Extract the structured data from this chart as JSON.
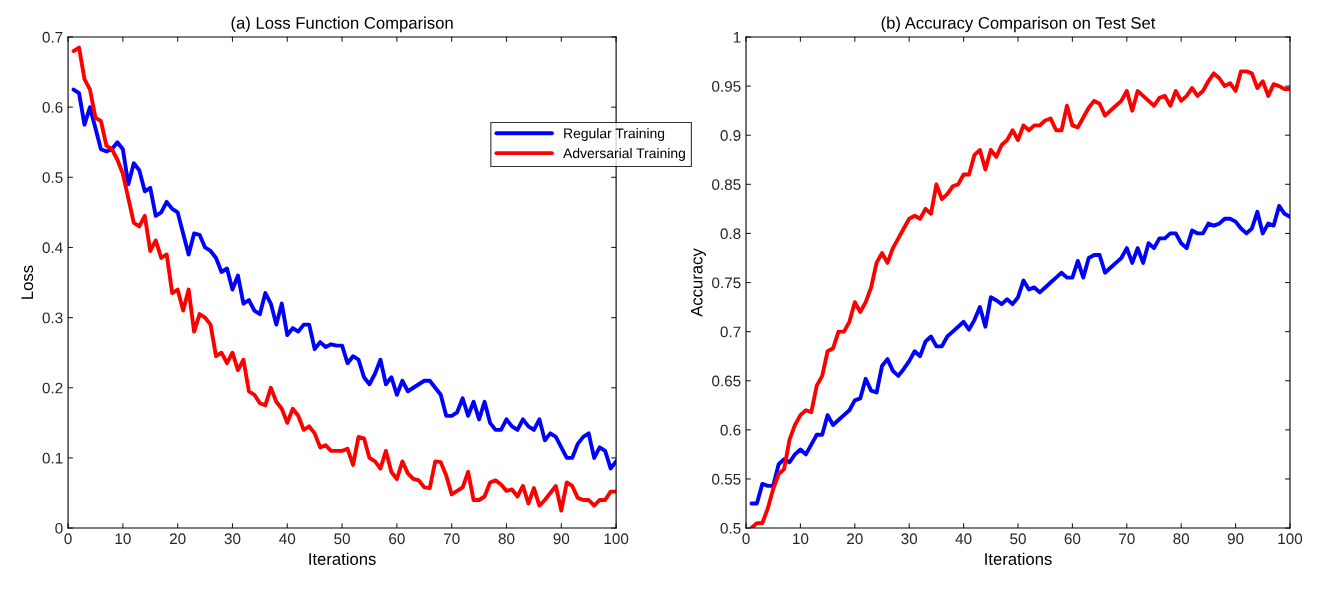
{
  "chart_data": [
    {
      "type": "line",
      "title": "(a) Loss Function Comparison",
      "xlabel": "Iterations",
      "ylabel": "Loss",
      "x": [
        1,
        2,
        3,
        4,
        5,
        6,
        7,
        8,
        9,
        10,
        11,
        12,
        13,
        14,
        15,
        16,
        17,
        18,
        19,
        20,
        21,
        22,
        23,
        24,
        25,
        26,
        27,
        28,
        29,
        30,
        31,
        32,
        33,
        34,
        35,
        36,
        37,
        38,
        39,
        40,
        41,
        42,
        43,
        44,
        45,
        46,
        47,
        48,
        49,
        50,
        51,
        52,
        53,
        54,
        55,
        56,
        57,
        58,
        59,
        60,
        61,
        62,
        63,
        64,
        65,
        66,
        67,
        68,
        69,
        70,
        71,
        72,
        73,
        74,
        75,
        76,
        77,
        78,
        79,
        80,
        81,
        82,
        83,
        84,
        85,
        86,
        87,
        88,
        89,
        90,
        91,
        92,
        93,
        94,
        95,
        96,
        97,
        98,
        99,
        100
      ],
      "series": [
        {
          "name": "Regular Training",
          "color": "#0000ff",
          "values": [
            0.625,
            0.62,
            0.575,
            0.6,
            0.57,
            0.54,
            0.537,
            0.54,
            0.55,
            0.54,
            0.49,
            0.52,
            0.51,
            0.48,
            0.485,
            0.445,
            0.45,
            0.465,
            0.455,
            0.45,
            0.42,
            0.39,
            0.42,
            0.418,
            0.4,
            0.395,
            0.385,
            0.365,
            0.37,
            0.34,
            0.36,
            0.32,
            0.325,
            0.31,
            0.305,
            0.335,
            0.32,
            0.29,
            0.32,
            0.275,
            0.285,
            0.28,
            0.29,
            0.29,
            0.255,
            0.265,
            0.258,
            0.262,
            0.26,
            0.26,
            0.235,
            0.245,
            0.24,
            0.215,
            0.205,
            0.22,
            0.24,
            0.205,
            0.215,
            0.19,
            0.21,
            0.195,
            0.2,
            0.205,
            0.21,
            0.21,
            0.2,
            0.19,
            0.16,
            0.16,
            0.165,
            0.185,
            0.16,
            0.18,
            0.155,
            0.18,
            0.15,
            0.14,
            0.14,
            0.155,
            0.145,
            0.14,
            0.155,
            0.145,
            0.14,
            0.155,
            0.125,
            0.135,
            0.13,
            0.115,
            0.1,
            0.1,
            0.12,
            0.13,
            0.135,
            0.1,
            0.115,
            0.11,
            0.085,
            0.095
          ]
        },
        {
          "name": "Adversarial Training",
          "color": "#ff0000",
          "values": [
            0.68,
            0.685,
            0.64,
            0.625,
            0.585,
            0.58,
            0.545,
            0.54,
            0.525,
            0.505,
            0.47,
            0.435,
            0.43,
            0.445,
            0.395,
            0.41,
            0.385,
            0.39,
            0.335,
            0.34,
            0.31,
            0.34,
            0.28,
            0.305,
            0.3,
            0.29,
            0.245,
            0.25,
            0.235,
            0.25,
            0.225,
            0.24,
            0.195,
            0.19,
            0.178,
            0.175,
            0.2,
            0.18,
            0.17,
            0.15,
            0.17,
            0.16,
            0.14,
            0.145,
            0.135,
            0.115,
            0.118,
            0.11,
            0.11,
            0.11,
            0.113,
            0.09,
            0.13,
            0.128,
            0.1,
            0.095,
            0.085,
            0.11,
            0.08,
            0.07,
            0.095,
            0.078,
            0.07,
            0.068,
            0.058,
            0.057,
            0.095,
            0.094,
            0.075,
            0.048,
            0.053,
            0.058,
            0.08,
            0.04,
            0.04,
            0.045,
            0.065,
            0.068,
            0.062,
            0.053,
            0.055,
            0.045,
            0.06,
            0.035,
            0.057,
            0.032,
            0.04,
            0.05,
            0.06,
            0.025,
            0.065,
            0.06,
            0.043,
            0.04,
            0.04,
            0.032,
            0.04,
            0.04,
            0.052,
            0.052
          ]
        }
      ],
      "xlim": [
        0,
        100
      ],
      "xticks": [
        0,
        10,
        20,
        30,
        40,
        50,
        60,
        70,
        80,
        90,
        100
      ],
      "ylim": [
        0,
        0.7
      ],
      "yticks": [
        0,
        0.1,
        0.2,
        0.3,
        0.4,
        0.5,
        0.6,
        0.7
      ],
      "grid": false,
      "legend": "top right"
    },
    {
      "type": "line",
      "title": "(b) Accuracy Comparison on Test Set",
      "xlabel": "Iterations",
      "ylabel": "Accuracy",
      "x": [
        1,
        2,
        3,
        4,
        5,
        6,
        7,
        8,
        9,
        10,
        11,
        12,
        13,
        14,
        15,
        16,
        17,
        18,
        19,
        20,
        21,
        22,
        23,
        24,
        25,
        26,
        27,
        28,
        29,
        30,
        31,
        32,
        33,
        34,
        35,
        36,
        37,
        38,
        39,
        40,
        41,
        42,
        43,
        44,
        45,
        46,
        47,
        48,
        49,
        50,
        51,
        52,
        53,
        54,
        55,
        56,
        57,
        58,
        59,
        60,
        61,
        62,
        63,
        64,
        65,
        66,
        67,
        68,
        69,
        70,
        71,
        72,
        73,
        74,
        75,
        76,
        77,
        78,
        79,
        80,
        81,
        82,
        83,
        84,
        85,
        86,
        87,
        88,
        89,
        90,
        91,
        92,
        93,
        94,
        95,
        96,
        97,
        98,
        99,
        100
      ],
      "series": [
        {
          "color": "#0000ff",
          "values": [
            0.525,
            0.525,
            0.545,
            0.543,
            0.543,
            0.565,
            0.57,
            0.567,
            0.575,
            0.58,
            0.575,
            0.585,
            0.595,
            0.595,
            0.615,
            0.605,
            0.61,
            0.615,
            0.62,
            0.63,
            0.632,
            0.652,
            0.64,
            0.638,
            0.665,
            0.672,
            0.66,
            0.655,
            0.662,
            0.67,
            0.68,
            0.675,
            0.69,
            0.695,
            0.685,
            0.685,
            0.695,
            0.7,
            0.705,
            0.71,
            0.702,
            0.712,
            0.725,
            0.705,
            0.735,
            0.732,
            0.728,
            0.733,
            0.728,
            0.735,
            0.752,
            0.743,
            0.745,
            0.74,
            0.745,
            0.75,
            0.755,
            0.76,
            0.755,
            0.755,
            0.772,
            0.755,
            0.775,
            0.778,
            0.778,
            0.76,
            0.765,
            0.77,
            0.775,
            0.785,
            0.77,
            0.785,
            0.77,
            0.79,
            0.785,
            0.795,
            0.795,
            0.8,
            0.8,
            0.79,
            0.785,
            0.803,
            0.8,
            0.8,
            0.81,
            0.808,
            0.81,
            0.815,
            0.815,
            0.812,
            0.805,
            0.8,
            0.805,
            0.822,
            0.8,
            0.81,
            0.808,
            0.828,
            0.82,
            0.817
          ]
        },
        {
          "color": "#ff0000",
          "values": [
            0.5,
            0.505,
            0.505,
            0.52,
            0.54,
            0.555,
            0.56,
            0.59,
            0.605,
            0.615,
            0.62,
            0.618,
            0.645,
            0.655,
            0.68,
            0.683,
            0.7,
            0.7,
            0.71,
            0.73,
            0.72,
            0.73,
            0.745,
            0.77,
            0.78,
            0.77,
            0.785,
            0.795,
            0.805,
            0.815,
            0.818,
            0.815,
            0.825,
            0.82,
            0.85,
            0.835,
            0.84,
            0.848,
            0.85,
            0.86,
            0.86,
            0.88,
            0.885,
            0.865,
            0.885,
            0.878,
            0.89,
            0.895,
            0.905,
            0.895,
            0.91,
            0.905,
            0.91,
            0.91,
            0.915,
            0.917,
            0.905,
            0.905,
            0.93,
            0.91,
            0.908,
            0.918,
            0.928,
            0.935,
            0.932,
            0.92,
            0.925,
            0.93,
            0.935,
            0.945,
            0.925,
            0.945,
            0.94,
            0.935,
            0.93,
            0.938,
            0.94,
            0.93,
            0.945,
            0.935,
            0.94,
            0.948,
            0.94,
            0.945,
            0.955,
            0.963,
            0.958,
            0.95,
            0.953,
            0.945,
            0.965,
            0.965,
            0.963,
            0.948,
            0.955,
            0.94,
            0.952,
            0.95,
            0.947,
            0.947
          ]
        }
      ],
      "xlim": [
        0,
        100
      ],
      "xticks": [
        0,
        10,
        20,
        30,
        40,
        50,
        60,
        70,
        80,
        90,
        100
      ],
      "ylim": [
        0.5,
        1
      ],
      "yticks": [
        0.5,
        0.55,
        0.6,
        0.65,
        0.7,
        0.75,
        0.8,
        0.85,
        0.9,
        0.95,
        1
      ],
      "grid": false
    }
  ]
}
